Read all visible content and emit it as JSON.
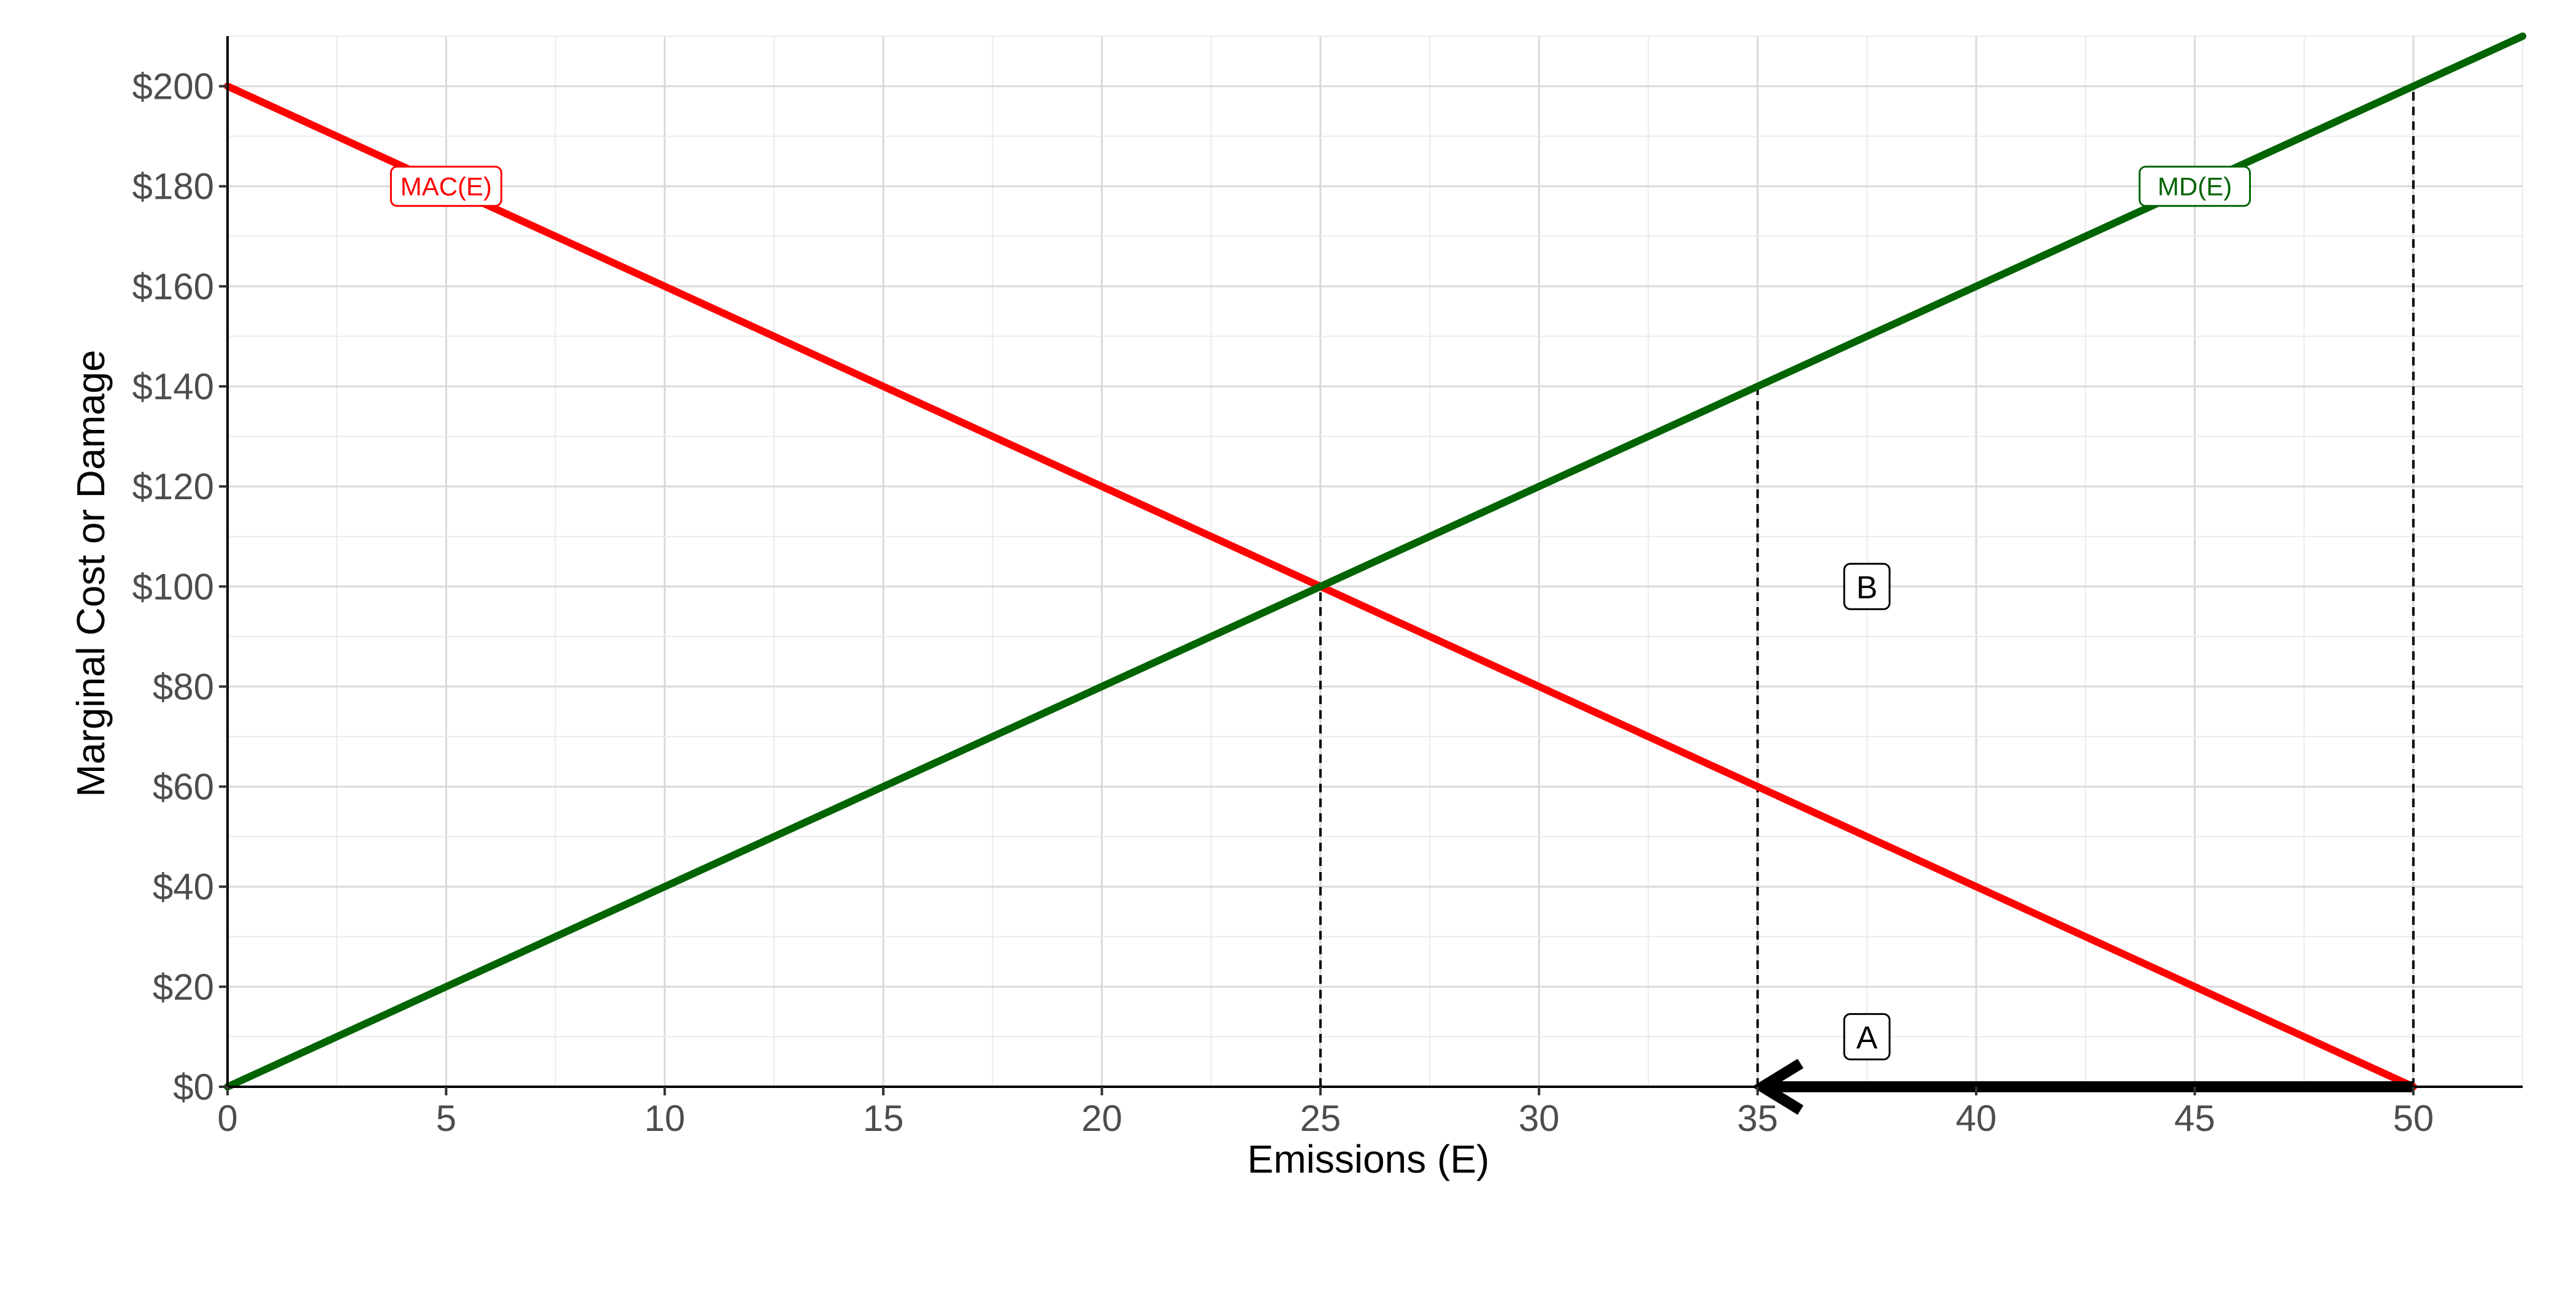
{
  "chart_data": {
    "type": "line",
    "xlabel": "Emissions (E)",
    "ylabel": "Marginal Cost or Damage",
    "xlim": [
      0,
      52.5
    ],
    "ylim": [
      0,
      210
    ],
    "x_ticks": [
      0,
      5,
      10,
      15,
      20,
      25,
      30,
      35,
      40,
      45,
      50
    ],
    "x_tick_labels": [
      "0",
      "5",
      "10",
      "15",
      "20",
      "25",
      "30",
      "35",
      "40",
      "45",
      "50"
    ],
    "y_ticks": [
      0,
      20,
      40,
      60,
      80,
      100,
      120,
      140,
      160,
      180,
      200
    ],
    "y_tick_labels": [
      "$0",
      "$20",
      "$40",
      "$60",
      "$80",
      "$100",
      "$120",
      "$140",
      "$160",
      "$180",
      "$200"
    ],
    "grid": true,
    "series": [
      {
        "name": "MAC(E)",
        "color": "#ff0000",
        "x": [
          0,
          50
        ],
        "y": [
          200,
          0
        ],
        "label_at": [
          5,
          180
        ]
      },
      {
        "name": "MD(E)",
        "color": "#006400",
        "x": [
          0,
          52.5
        ],
        "y": [
          0,
          210
        ],
        "label_at": [
          45,
          180
        ]
      }
    ],
    "reference_lines": [
      {
        "x": 25,
        "y_top": 100
      },
      {
        "x": 35,
        "y_top": 140
      },
      {
        "x": 50,
        "y_top": 200
      }
    ],
    "arrow": {
      "from": [
        50,
        0
      ],
      "to": [
        35,
        0
      ],
      "color": "#000000"
    },
    "annotations": [
      {
        "text": "A",
        "x": 37.5,
        "y": 10
      },
      {
        "text": "B",
        "x": 37.5,
        "y": 100
      }
    ]
  }
}
